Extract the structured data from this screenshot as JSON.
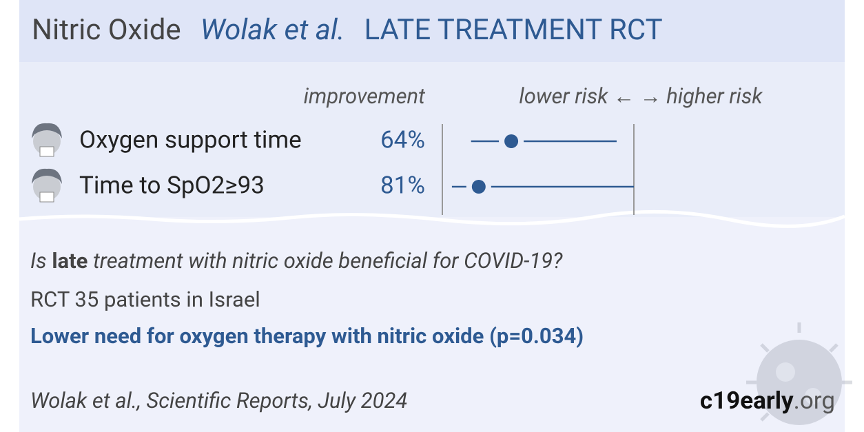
{
  "chart_data": {
    "type": "forest",
    "title": [
      "Nitric Oxide",
      "Wolak et al.",
      "LATE TREATMENT RCT"
    ],
    "improvement_header": "improvement",
    "direction_label": "lower risk ← → higher risk",
    "categories": [
      "Oxygen support time",
      "Time to SpO2≥93"
    ],
    "values": [
      0.36,
      0.19
    ],
    "ci_low": [
      0.15,
      0.05
    ],
    "ci_high": [
      0.91,
      1.0
    ],
    "improvement": {
      "values": [
        64,
        81
      ],
      "value_labels": [
        "64%",
        "81%"
      ]
    },
    "xlim": [
      0,
      1
    ],
    "color": "#2e5a92",
    "question": [
      "Is ",
      "late",
      " treatment with nitric oxide beneficial for COVID-19?"
    ],
    "details": "RCT 35 patients in Israel",
    "conclusion": "Lower need for oxygen therapy with nitric oxide (p=0.034)",
    "citation": "Wolak et al., Scientific Reports, July 2024",
    "brand": [
      "c19early",
      ".org"
    ]
  }
}
